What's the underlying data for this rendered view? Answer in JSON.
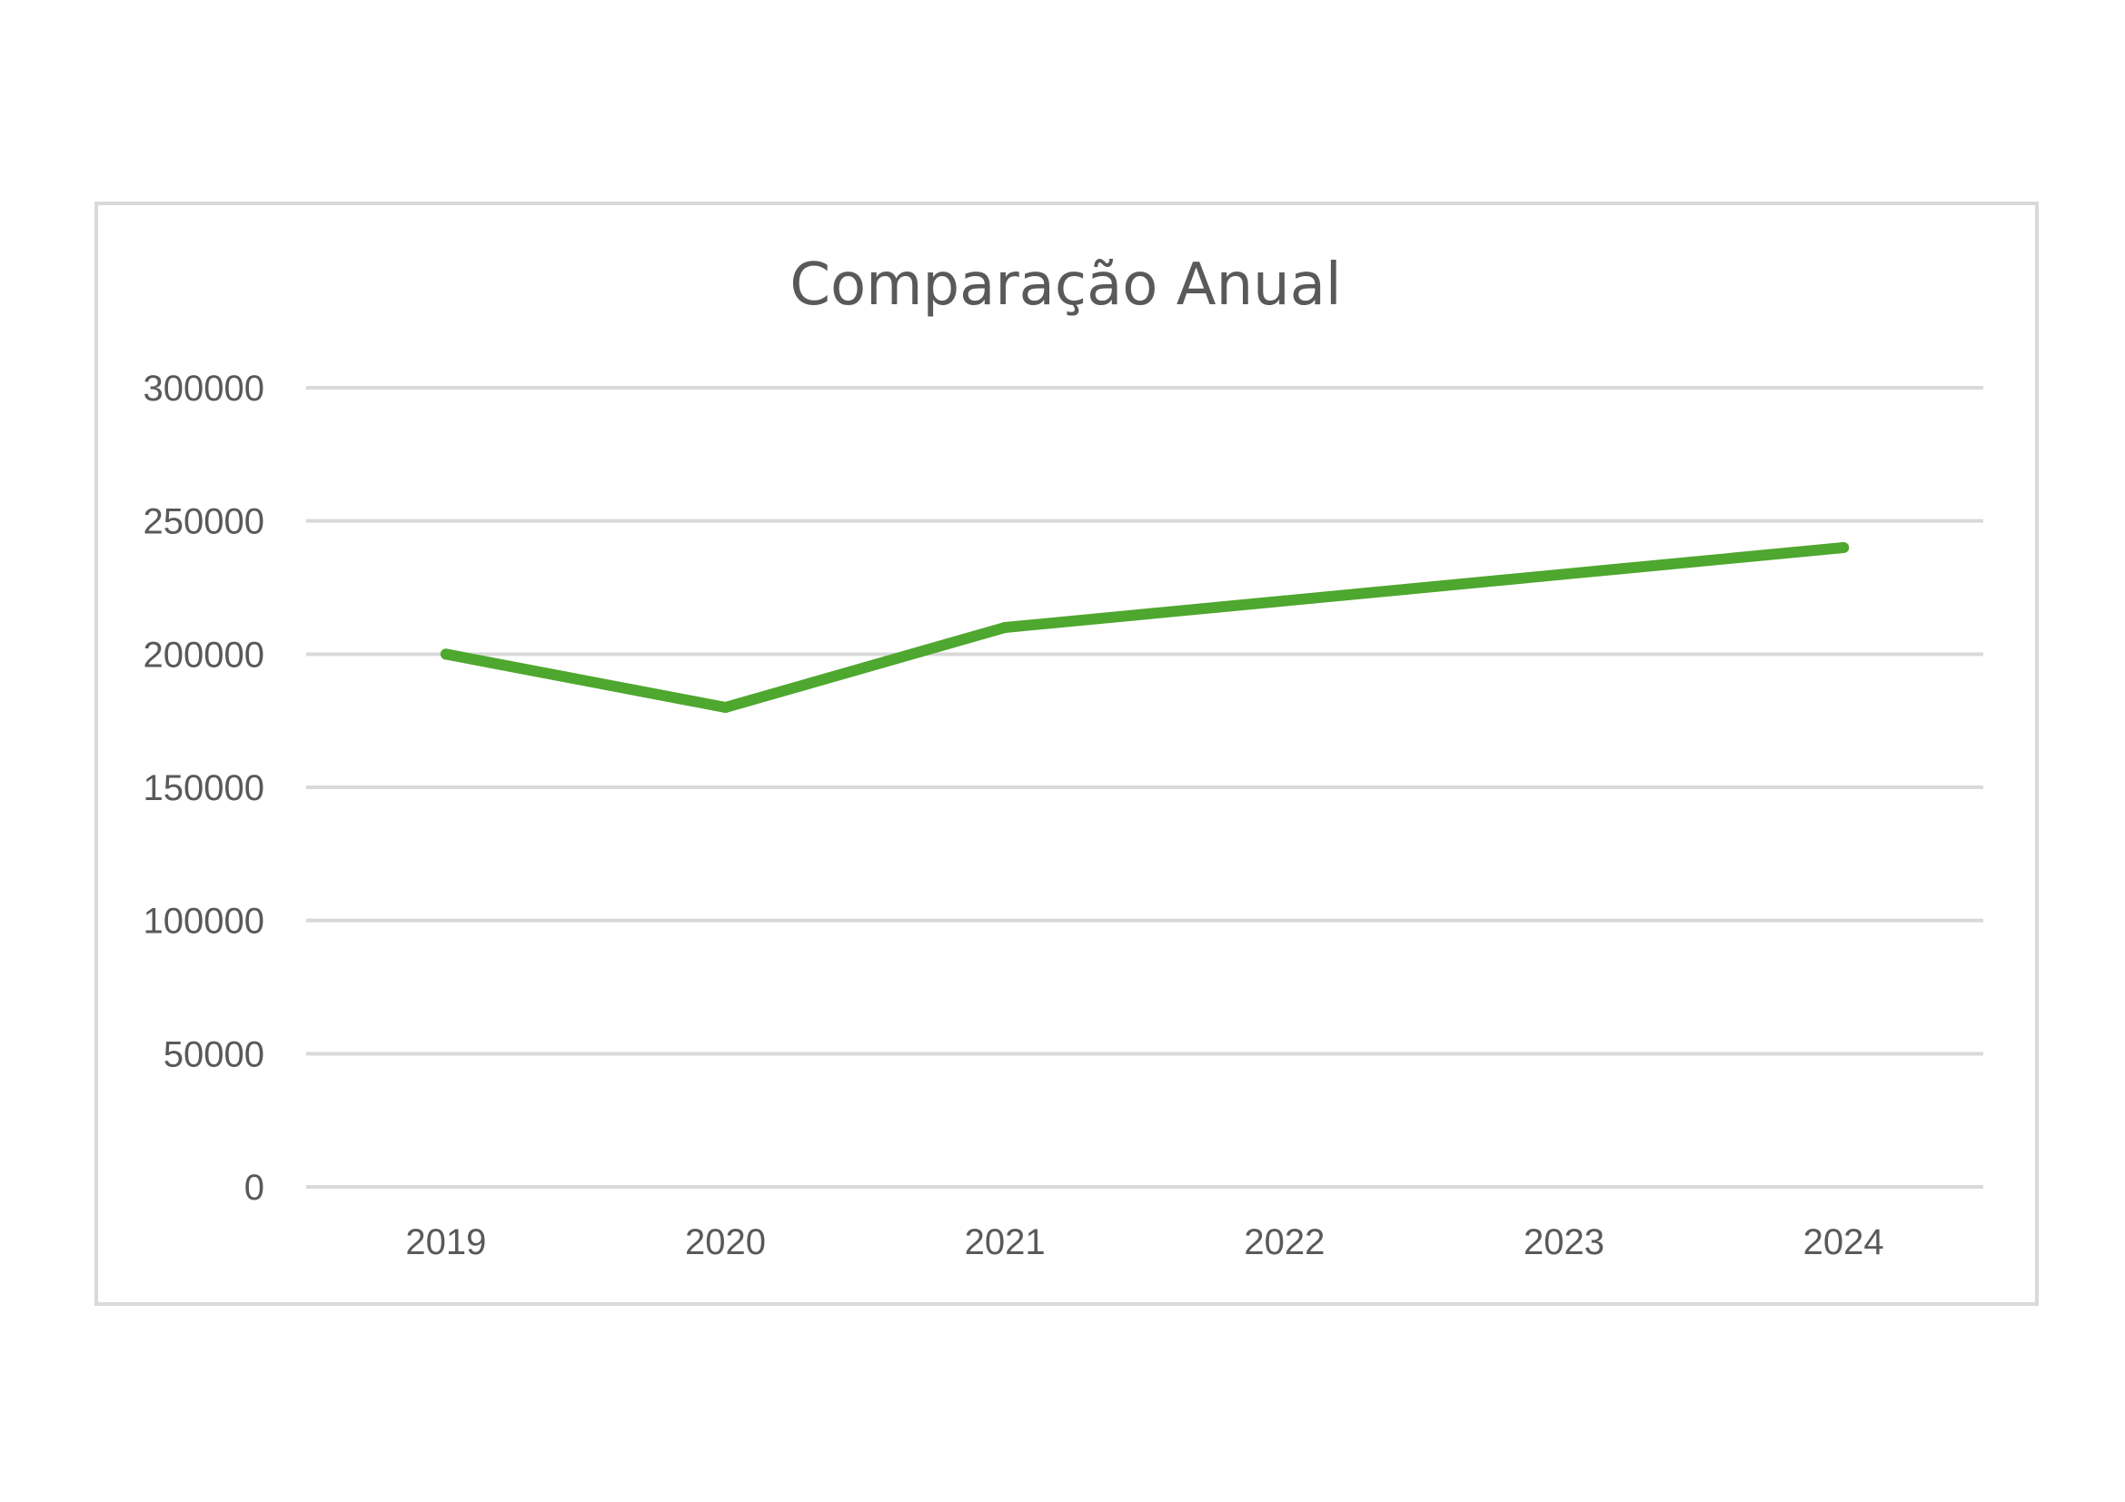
{
  "chart_data": {
    "type": "line",
    "title": "Comparação Anual",
    "xlabel": "",
    "ylabel": "",
    "categories": [
      "2019",
      "2020",
      "2021",
      "2022",
      "2023",
      "2024"
    ],
    "series": [
      {
        "values": [
          200000,
          180000,
          210000,
          220000,
          230000,
          240000
        ],
        "color": "#4ea72e"
      }
    ],
    "ylim": [
      0,
      300000
    ],
    "yticks": [
      0,
      50000,
      100000,
      150000,
      200000,
      250000,
      300000
    ],
    "ytick_labels": [
      "0",
      "50000",
      "100000",
      "150000",
      "200000",
      "250000",
      "300000"
    ],
    "grid": true,
    "legend": "none",
    "gridline_color": "#d9d9d9",
    "text_color": "#595959"
  }
}
